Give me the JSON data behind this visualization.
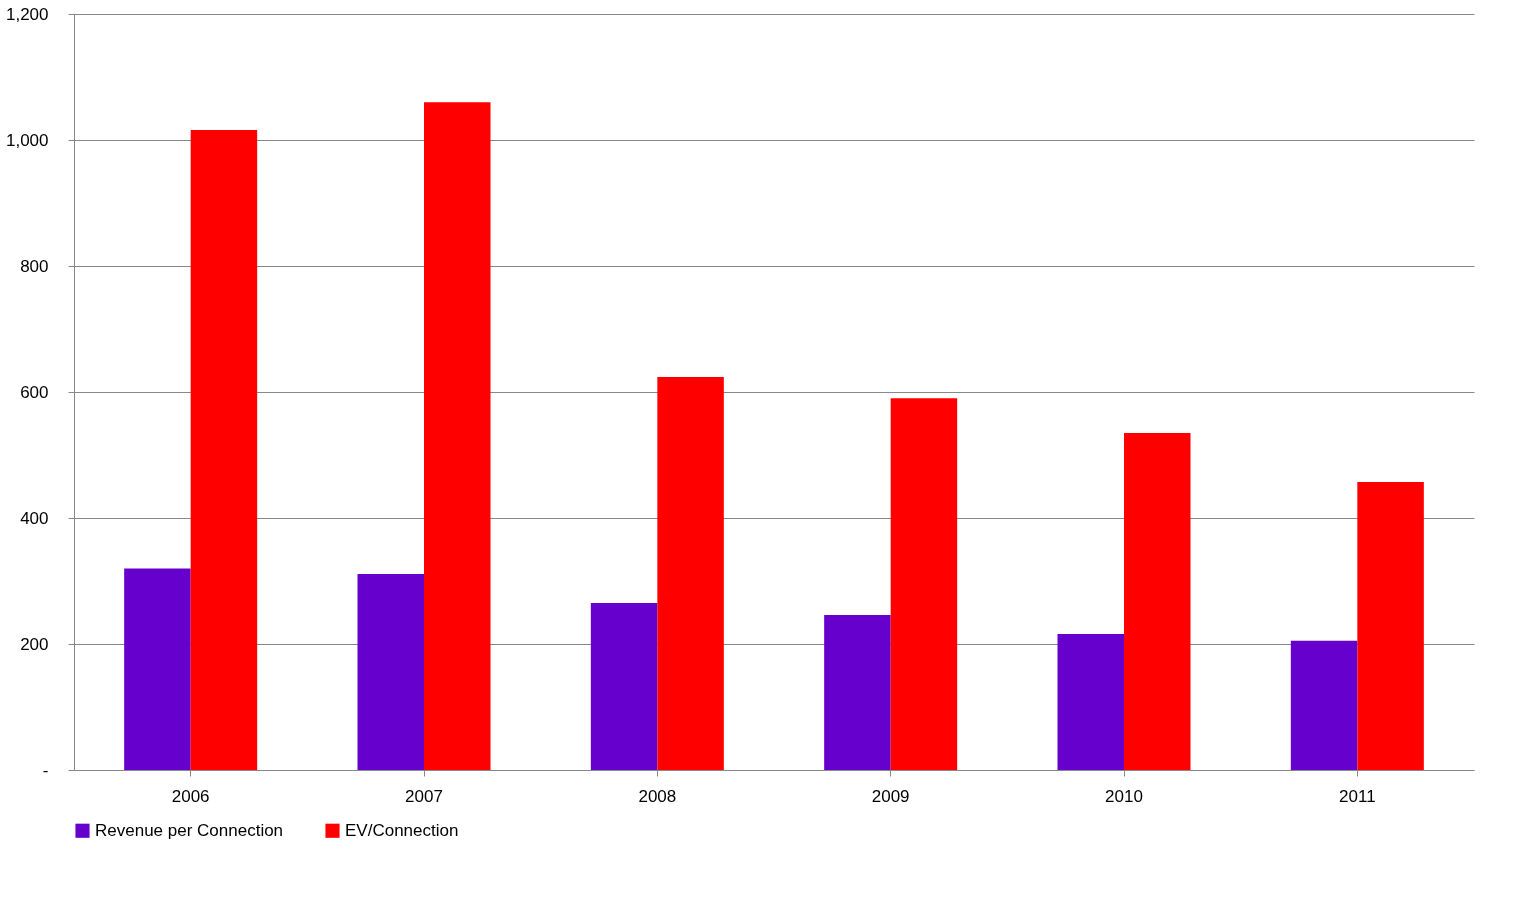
{
  "chart_data": {
    "type": "bar",
    "categories": [
      "2006",
      "2007",
      "2008",
      "2009",
      "2010",
      "2011"
    ],
    "series": [
      {
        "name": "Revenue per Connection",
        "color": "#6600cc",
        "values": [
          320,
          311,
          265,
          246,
          216,
          205
        ]
      },
      {
        "name": "EV/Connection",
        "color": "#ff0000",
        "values": [
          1016,
          1060,
          624,
          590,
          535,
          457
        ]
      }
    ],
    "ylim": [
      0,
      1200
    ],
    "yticks": [
      {
        "value": 0,
        "label": "-"
      },
      200,
      400,
      600,
      800,
      {
        "value": 1000,
        "label": "1,000"
      },
      {
        "value": 1200,
        "label": "1,200"
      }
    ],
    "grid": "y",
    "legend": "bottom"
  }
}
